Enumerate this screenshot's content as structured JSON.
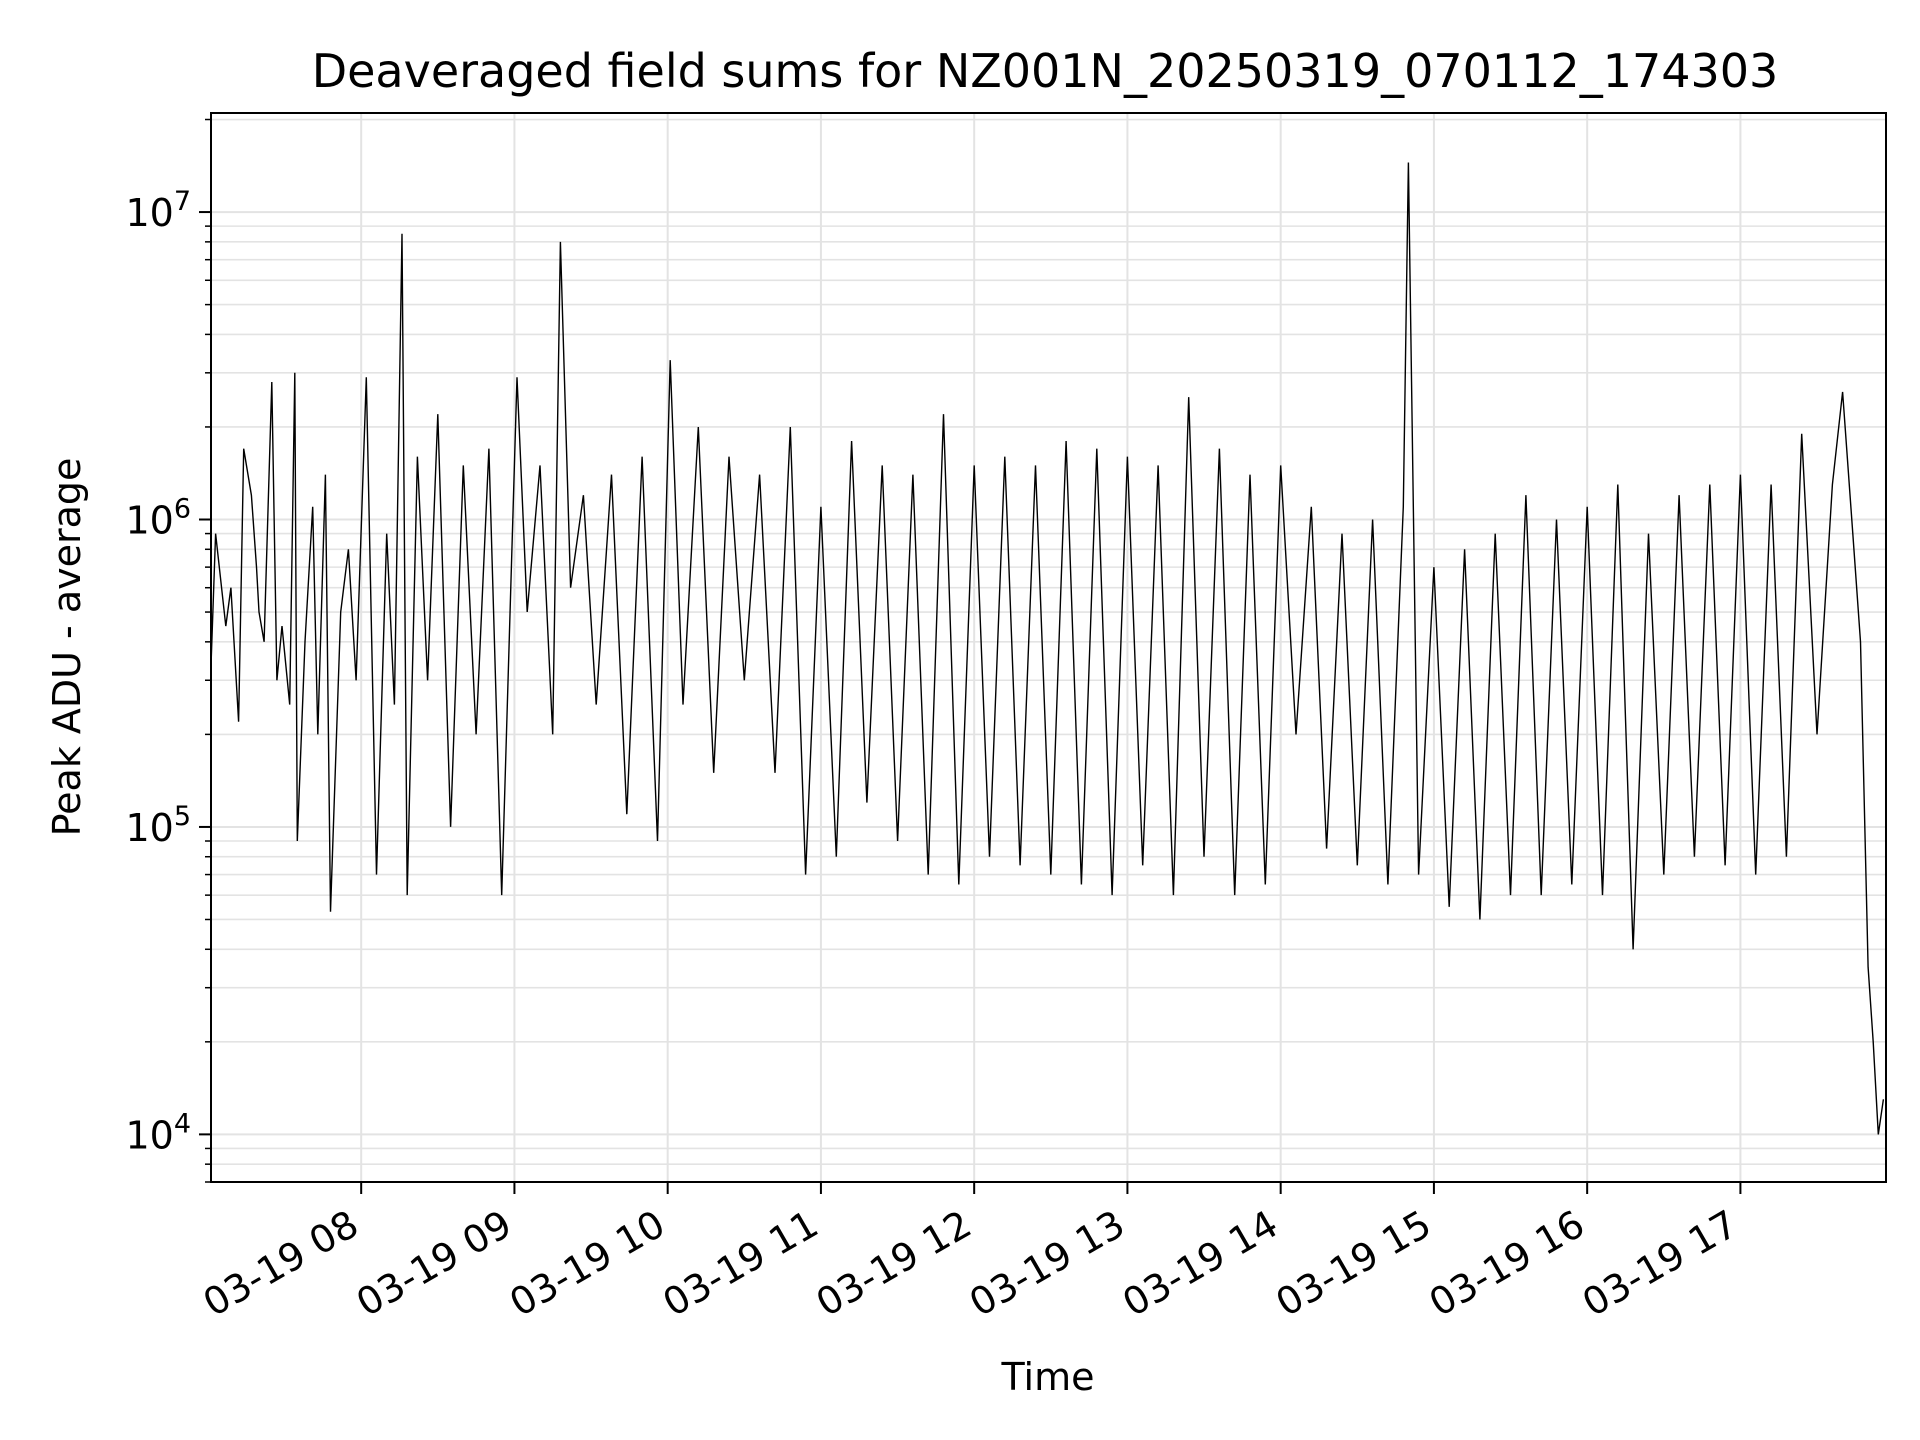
{
  "chart_data": {
    "type": "line",
    "title": "Deaveraged field sums for NZ001N_20250319_070112_174303",
    "xlabel": "Time",
    "ylabel": "Peak ADU - average",
    "yscale": "log",
    "ylim": [
      7000,
      21000000
    ],
    "xlim": [
      "2025-03-19T07:01:12",
      "2025-03-19T17:57:00"
    ],
    "grid": true,
    "line_color": "#000000",
    "grid_color": "#e3e3e3",
    "x_ticks": [
      {
        "t": "2025-03-19T08:00",
        "label": "03-19 08"
      },
      {
        "t": "2025-03-19T09:00",
        "label": "03-19 09"
      },
      {
        "t": "2025-03-19T10:00",
        "label": "03-19 10"
      },
      {
        "t": "2025-03-19T11:00",
        "label": "03-19 11"
      },
      {
        "t": "2025-03-19T12:00",
        "label": "03-19 12"
      },
      {
        "t": "2025-03-19T13:00",
        "label": "03-19 13"
      },
      {
        "t": "2025-03-19T14:00",
        "label": "03-19 14"
      },
      {
        "t": "2025-03-19T15:00",
        "label": "03-19 15"
      },
      {
        "t": "2025-03-19T16:00",
        "label": "03-19 16"
      },
      {
        "t": "2025-03-19T17:00",
        "label": "03-19 17"
      }
    ],
    "y_ticks": [
      {
        "value": 10000,
        "base": "10",
        "exp": "4"
      },
      {
        "value": 100000,
        "base": "10",
        "exp": "5"
      },
      {
        "value": 1000000,
        "base": "10",
        "exp": "6"
      },
      {
        "value": 10000000,
        "base": "10",
        "exp": "7"
      }
    ],
    "series": [
      {
        "x": [
          "2025-03-19T07:01",
          "2025-03-19T07:03",
          "2025-03-19T07:07",
          "2025-03-19T07:09",
          "2025-03-19T07:12",
          "2025-03-19T07:14",
          "2025-03-19T07:17",
          "2025-03-19T07:19",
          "2025-03-19T07:20",
          "2025-03-19T07:22",
          "2025-03-19T07:25",
          "2025-03-19T07:27",
          "2025-03-19T07:29",
          "2025-03-19T07:32",
          "2025-03-19T07:34",
          "2025-03-19T07:35",
          "2025-03-19T07:38",
          "2025-03-19T07:41",
          "2025-03-19T07:43",
          "2025-03-19T07:46",
          "2025-03-19T07:48",
          "2025-03-19T07:52",
          "2025-03-19T07:55",
          "2025-03-19T07:58",
          "2025-03-19T08:02",
          "2025-03-19T08:06",
          "2025-03-19T08:10",
          "2025-03-19T08:13",
          "2025-03-19T08:16",
          "2025-03-19T08:18",
          "2025-03-19T08:22",
          "2025-03-19T08:26",
          "2025-03-19T08:30",
          "2025-03-19T08:35",
          "2025-03-19T08:40",
          "2025-03-19T08:45",
          "2025-03-19T08:50",
          "2025-03-19T08:55",
          "2025-03-19T09:01",
          "2025-03-19T09:05",
          "2025-03-19T09:10",
          "2025-03-19T09:15",
          "2025-03-19T09:18",
          "2025-03-19T09:22",
          "2025-03-19T09:27",
          "2025-03-19T09:32",
          "2025-03-19T09:38",
          "2025-03-19T09:44",
          "2025-03-19T09:50",
          "2025-03-19T09:56",
          "2025-03-19T10:01",
          "2025-03-19T10:06",
          "2025-03-19T10:12",
          "2025-03-19T10:18",
          "2025-03-19T10:24",
          "2025-03-19T10:30",
          "2025-03-19T10:36",
          "2025-03-19T10:42",
          "2025-03-19T10:48",
          "2025-03-19T10:54",
          "2025-03-19T11:00",
          "2025-03-19T11:06",
          "2025-03-19T11:12",
          "2025-03-19T11:18",
          "2025-03-19T11:24",
          "2025-03-19T11:30",
          "2025-03-19T11:36",
          "2025-03-19T11:42",
          "2025-03-19T11:48",
          "2025-03-19T11:54",
          "2025-03-19T12:00",
          "2025-03-19T12:06",
          "2025-03-19T12:12",
          "2025-03-19T12:18",
          "2025-03-19T12:24",
          "2025-03-19T12:30",
          "2025-03-19T12:36",
          "2025-03-19T12:42",
          "2025-03-19T12:48",
          "2025-03-19T12:54",
          "2025-03-19T13:00",
          "2025-03-19T13:06",
          "2025-03-19T13:12",
          "2025-03-19T13:18",
          "2025-03-19T13:24",
          "2025-03-19T13:30",
          "2025-03-19T13:36",
          "2025-03-19T13:42",
          "2025-03-19T13:48",
          "2025-03-19T13:54",
          "2025-03-19T14:00",
          "2025-03-19T14:06",
          "2025-03-19T14:12",
          "2025-03-19T14:18",
          "2025-03-19T14:24",
          "2025-03-19T14:30",
          "2025-03-19T14:36",
          "2025-03-19T14:42",
          "2025-03-19T14:48",
          "2025-03-19T14:50",
          "2025-03-19T14:54",
          "2025-03-19T15:00",
          "2025-03-19T15:06",
          "2025-03-19T15:12",
          "2025-03-19T15:18",
          "2025-03-19T15:24",
          "2025-03-19T15:30",
          "2025-03-19T15:36",
          "2025-03-19T15:42",
          "2025-03-19T15:48",
          "2025-03-19T15:54",
          "2025-03-19T16:00",
          "2025-03-19T16:06",
          "2025-03-19T16:12",
          "2025-03-19T16:18",
          "2025-03-19T16:24",
          "2025-03-19T16:30",
          "2025-03-19T16:36",
          "2025-03-19T16:42",
          "2025-03-19T16:48",
          "2025-03-19T16:54",
          "2025-03-19T17:00",
          "2025-03-19T17:06",
          "2025-03-19T17:12",
          "2025-03-19T17:18",
          "2025-03-19T17:24",
          "2025-03-19T17:30",
          "2025-03-19T17:36",
          "2025-03-19T17:40",
          "2025-03-19T17:44",
          "2025-03-19T17:47",
          "2025-03-19T17:50",
          "2025-03-19T17:52",
          "2025-03-19T17:54",
          "2025-03-19T17:56"
        ],
        "y": [
          300000,
          900000,
          450000,
          600000,
          220000,
          1700000,
          1200000,
          700000,
          500000,
          400000,
          2800000,
          300000,
          450000,
          250000,
          3000000,
          90000,
          400000,
          1100000,
          200000,
          1400000,
          53000,
          500000,
          800000,
          300000,
          2900000,
          70000,
          900000,
          250000,
          8500000,
          60000,
          1600000,
          300000,
          2200000,
          100000,
          1500000,
          200000,
          1700000,
          60000,
          2900000,
          500000,
          1500000,
          200000,
          8000000,
          600000,
          1200000,
          250000,
          1400000,
          110000,
          1600000,
          90000,
          3300000,
          250000,
          2000000,
          150000,
          1600000,
          300000,
          1400000,
          150000,
          2000000,
          70000,
          1100000,
          80000,
          1800000,
          120000,
          1500000,
          90000,
          1400000,
          70000,
          2200000,
          65000,
          1500000,
          80000,
          1600000,
          75000,
          1500000,
          70000,
          1800000,
          65000,
          1700000,
          60000,
          1600000,
          75000,
          1500000,
          60000,
          2500000,
          80000,
          1700000,
          60000,
          1400000,
          65000,
          1500000,
          200000,
          1100000,
          85000,
          900000,
          75000,
          1000000,
          65000,
          1100000,
          14500000,
          70000,
          700000,
          55000,
          800000,
          50000,
          900000,
          60000,
          1200000,
          60000,
          1000000,
          65000,
          1100000,
          60000,
          1300000,
          40000,
          900000,
          70000,
          1200000,
          80000,
          1300000,
          75000,
          1400000,
          70000,
          1300000,
          80000,
          1900000,
          200000,
          1300000,
          2600000,
          900000,
          400000,
          35000,
          20000,
          10000,
          13000
        ]
      }
    ]
  }
}
